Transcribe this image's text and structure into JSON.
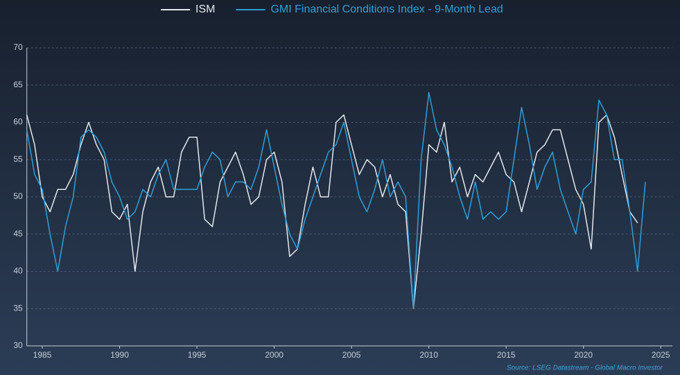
{
  "chart_data": {
    "type": "line",
    "legend_position": "top",
    "grid": true,
    "source": "Source: LSEG Datastream - Global Macro Investor",
    "x": [
      1984,
      1984.5,
      1985,
      1985.5,
      1986,
      1986.5,
      1987,
      1987.5,
      1988,
      1988.5,
      1989,
      1989.5,
      1990,
      1990.5,
      1991,
      1991.5,
      1992,
      1992.5,
      1993,
      1993.5,
      1994,
      1994.5,
      1995,
      1995.5,
      1996,
      1996.5,
      1997,
      1997.5,
      1998,
      1998.5,
      1999,
      1999.5,
      2000,
      2000.5,
      2001,
      2001.5,
      2002,
      2002.5,
      2003,
      2003.5,
      2004,
      2004.5,
      2005,
      2005.5,
      2006,
      2006.5,
      2007,
      2007.5,
      2008,
      2008.5,
      2009,
      2009.5,
      2010,
      2010.5,
      2011,
      2011.5,
      2012,
      2012.5,
      2013,
      2013.5,
      2014,
      2014.5,
      2015,
      2015.5,
      2016,
      2016.5,
      2017,
      2017.5,
      2018,
      2018.5,
      2019,
      2019.5,
      2020,
      2020.5,
      2021,
      2021.5,
      2022,
      2022.5,
      2023,
      2023.5,
      2024
    ],
    "series": [
      {
        "name": "ISM",
        "color": "#e6e9ee",
        "values": [
          61,
          57,
          50,
          48,
          51,
          51,
          53,
          57,
          60,
          57,
          55,
          48,
          47,
          49,
          40,
          48,
          52,
          54,
          50,
          50,
          56,
          58,
          58,
          47,
          46,
          52,
          54,
          56,
          53,
          49,
          50,
          55,
          56,
          52,
          42,
          43,
          49,
          54,
          50,
          50,
          60,
          61,
          57,
          53,
          55,
          54,
          50,
          53,
          49,
          48,
          35,
          45,
          57,
          56,
          60,
          52,
          54,
          50,
          53,
          52,
          54,
          56,
          53,
          52,
          48,
          52,
          56,
          57,
          59,
          59,
          55,
          51,
          49,
          43,
          60,
          61,
          58,
          53,
          48,
          46.5,
          null
        ]
      },
      {
        "name": "GMI Financial Conditions Index - 9-Month Lead",
        "color": "#2f9fd8",
        "values": [
          59,
          53,
          51,
          45,
          40,
          46,
          50,
          58,
          59,
          58,
          56,
          52,
          50,
          47,
          48,
          51,
          50,
          53,
          55,
          51,
          51,
          51,
          51,
          54,
          56,
          55,
          50,
          52,
          52,
          51,
          54,
          59,
          54,
          49,
          45,
          43,
          47,
          50,
          53,
          56,
          57,
          60,
          55,
          50,
          48,
          51,
          55,
          50,
          52,
          50,
          35,
          55,
          64,
          59,
          57,
          54,
          50,
          47,
          52,
          47,
          48,
          47,
          48,
          55,
          62,
          57,
          51,
          54,
          56,
          51,
          48,
          45,
          51,
          52,
          63,
          61,
          55,
          55,
          48,
          40,
          52
        ]
      }
    ],
    "xlim": [
      1984,
      2025.75
    ],
    "xticks": [
      1985,
      1990,
      1995,
      2000,
      2005,
      2010,
      2015,
      2020,
      2025
    ],
    "ylim": [
      30,
      70
    ],
    "yticks": [
      30,
      35,
      40,
      45,
      50,
      55,
      60,
      65,
      70
    ]
  }
}
